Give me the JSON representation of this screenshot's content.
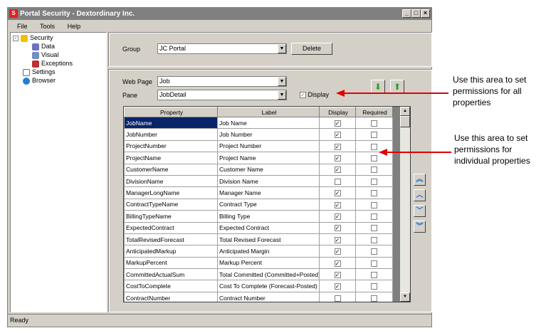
{
  "window": {
    "title": "Portal Security - Dextordinary Inc.",
    "icon_letter": "S"
  },
  "menu": [
    "File",
    "Tools",
    "Help"
  ],
  "tree": [
    {
      "label": "Security",
      "icon": "lock-icon"
    },
    {
      "label": "Data",
      "icon": "database-icon"
    },
    {
      "label": "Visual",
      "icon": "monitor-icon"
    },
    {
      "label": "Exceptions",
      "icon": "exceptions-icon"
    },
    {
      "label": "Settings",
      "icon": "checklist-icon"
    },
    {
      "label": "Browser",
      "icon": "globe-icon"
    }
  ],
  "group": {
    "label": "Group",
    "value": "JC Portal",
    "delete": "Delete"
  },
  "webpage": {
    "label": "Web Page",
    "value": "Job"
  },
  "pane": {
    "label": "Pane",
    "value": "JobDetail",
    "display_label": "Display",
    "display_checked": true
  },
  "grid": {
    "headers": [
      "Property",
      "Label",
      "Display",
      "Required"
    ],
    "rows": [
      [
        "JobName",
        "Job Name",
        true,
        false
      ],
      [
        "JobNumber",
        "Job Number",
        true,
        false
      ],
      [
        "ProjectNumber",
        "Project Number",
        true,
        false
      ],
      [
        "ProjectName",
        "Project Name",
        true,
        false
      ],
      [
        "CustomerName",
        "Customer Name",
        true,
        false
      ],
      [
        "DivisionName",
        "Division Name",
        false,
        false
      ],
      [
        "ManagerLongName",
        "Manager Name",
        true,
        false
      ],
      [
        "ContractTypeName",
        "Contract Type",
        true,
        false
      ],
      [
        "BillingTypeName",
        "Billing Type",
        true,
        false
      ],
      [
        "ExpectedContract",
        "Expected Contract",
        true,
        false
      ],
      [
        "TotalRevisedForecast",
        "Total Revised Forecast",
        true,
        false
      ],
      [
        "AnticipatedMarkup",
        "Anticipated Margin",
        true,
        false
      ],
      [
        "MarkupPercent",
        "Markup Percent",
        true,
        false
      ],
      [
        "CommittedActualSum",
        "Total Committed (Committed+Posted)",
        true,
        false
      ],
      [
        "CostToComplete",
        "Cost To Complete (Forecast-Posted)",
        true,
        false
      ],
      [
        "ContractNumber",
        "Contract Number",
        false,
        false
      ]
    ]
  },
  "status": "Ready",
  "annotations": [
    "Use this area to set permissions for all properties",
    "Use this area to set permissions for individual properties"
  ],
  "colors": {
    "selection": "#0a246a",
    "arrow": "#e00000",
    "nav": "#1a6fdc"
  }
}
